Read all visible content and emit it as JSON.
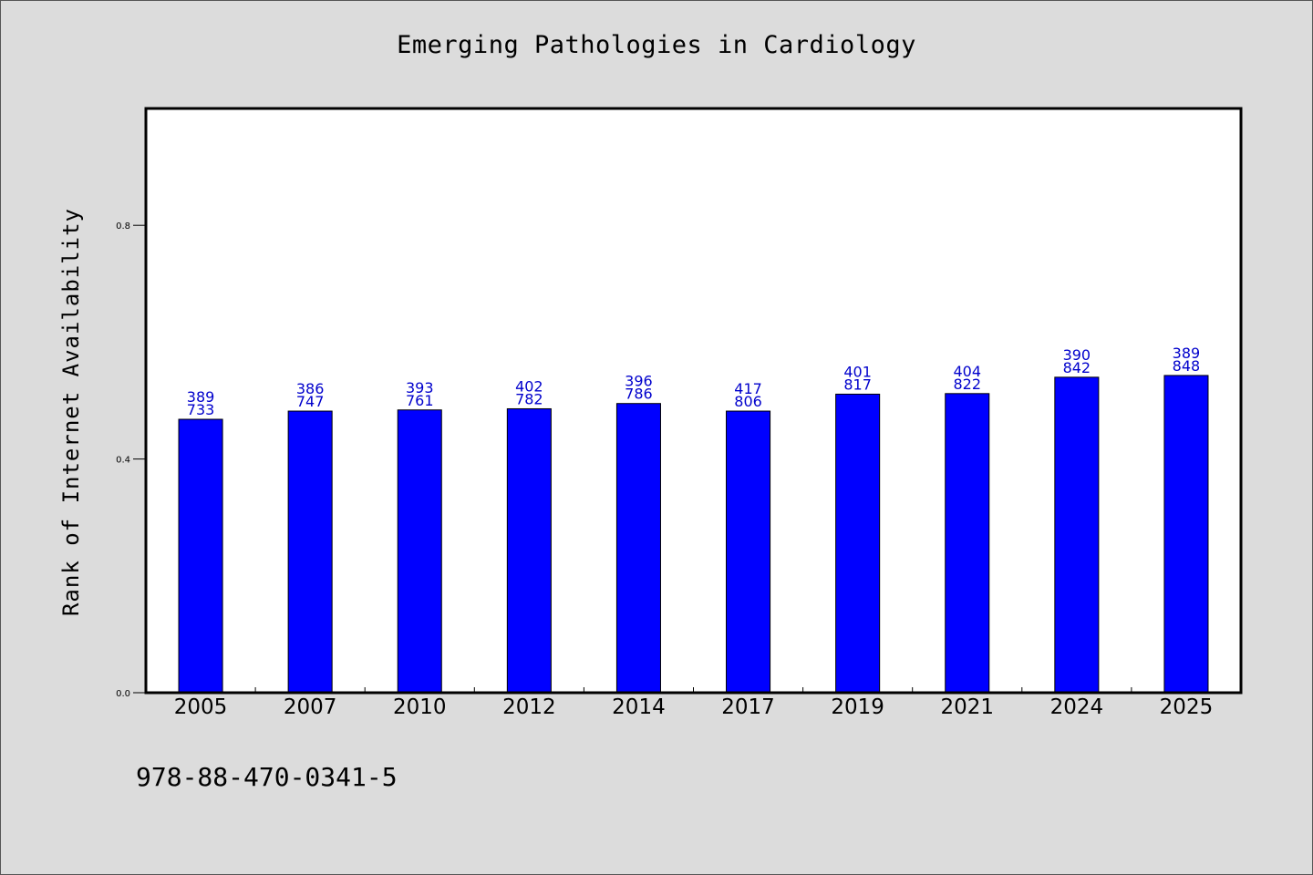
{
  "title": "Emerging Pathologies in Cardiology",
  "footer_text": "978-88-470-0341-5",
  "chart_data": {
    "type": "bar",
    "title": "Emerging Pathologies in Cardiology",
    "xlabel": "",
    "ylabel": "Rank of Internet Availability",
    "ylim": [
      0,
      1.0
    ],
    "yticks": [
      0.0,
      0.4,
      0.8
    ],
    "ytick_labels": [
      "0.0",
      "0.4",
      "0.8"
    ],
    "grid": false,
    "legend": "none",
    "categories": [
      "2005",
      "2007",
      "2010",
      "2012",
      "2014",
      "2017",
      "2019",
      "2021",
      "2024",
      "2025"
    ],
    "values": [
      0.468,
      0.482,
      0.484,
      0.486,
      0.495,
      0.482,
      0.511,
      0.512,
      0.54,
      0.543
    ],
    "data_labels_top": [
      "389",
      "386",
      "393",
      "402",
      "396",
      "417",
      "401",
      "404",
      "390",
      "389"
    ],
    "data_labels_bottom": [
      "733",
      "747",
      "761",
      "782",
      "786",
      "806",
      "817",
      "822",
      "842",
      "848"
    ],
    "colors": {
      "bar": "#0000ff",
      "bar_edge": "#000000",
      "bar_label": "#0000cc",
      "plot_bg": "#ffffff",
      "figure_bg": "#dcdcdc"
    }
  }
}
